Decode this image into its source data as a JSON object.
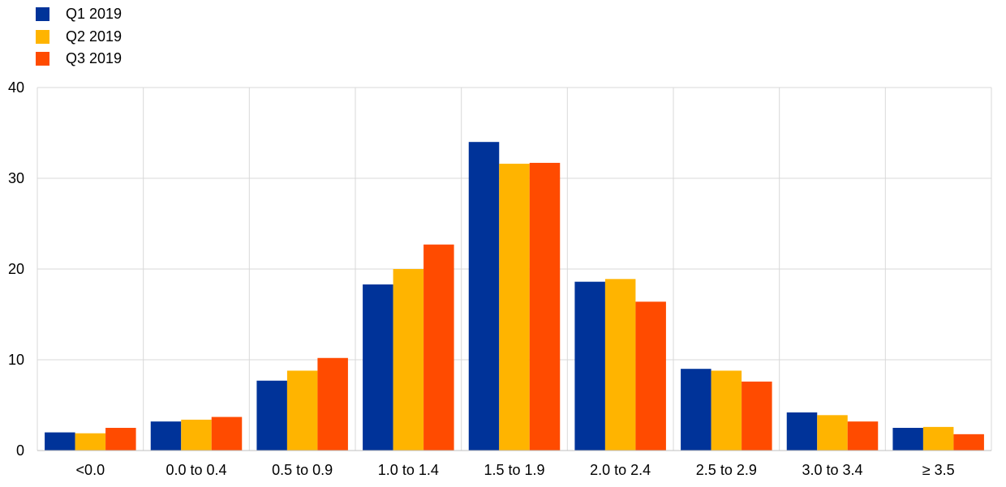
{
  "chart_data": {
    "type": "bar",
    "categories": [
      "<0.0",
      "0.0 to 0.4",
      "0.5 to 0.9",
      "1.0 to 1.4",
      "1.5 to 1.9",
      "2.0 to 2.4",
      "2.5 to 2.9",
      "3.0 to 3.4",
      "≥ 3.5"
    ],
    "series": [
      {
        "name": "Q1 2019",
        "color": "#003399",
        "values": [
          2.0,
          3.2,
          7.7,
          18.3,
          34.0,
          18.6,
          9.0,
          4.2,
          2.5
        ]
      },
      {
        "name": "Q2 2019",
        "color": "#FFB400",
        "values": [
          1.9,
          3.4,
          8.8,
          20.0,
          31.6,
          18.9,
          8.8,
          3.9,
          2.6
        ]
      },
      {
        "name": "Q3 2019",
        "color": "#FF4B00",
        "values": [
          2.5,
          3.7,
          10.2,
          22.7,
          31.7,
          16.4,
          7.6,
          3.2,
          1.8
        ]
      }
    ],
    "ylim": [
      0,
      40
    ],
    "yticks": [
      "0",
      "10",
      "20",
      "30",
      "40"
    ],
    "grid": true,
    "legend": "top-left",
    "title": "",
    "xlabel": "",
    "ylabel": ""
  }
}
